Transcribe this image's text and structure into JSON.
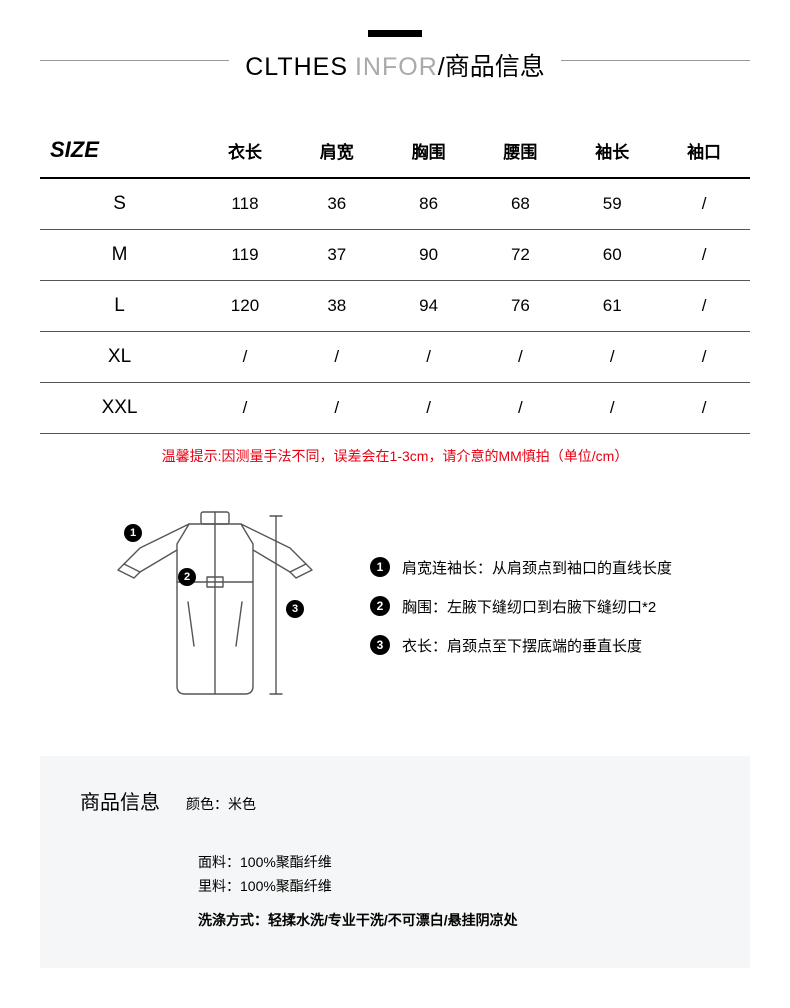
{
  "title": {
    "en1": "CLTHES",
    "en2": "INFOR",
    "sep": "/",
    "cn": "商品信息"
  },
  "table": {
    "size_header": "SIZE",
    "columns": [
      "衣长",
      "肩宽",
      "胸围",
      "腰围",
      "袖长",
      "袖口"
    ],
    "rows": [
      {
        "size": "S",
        "v": [
          "118",
          "36",
          "86",
          "68",
          "59",
          "/"
        ]
      },
      {
        "size": "M",
        "v": [
          "119",
          "37",
          "90",
          "72",
          "60",
          "/"
        ]
      },
      {
        "size": "L",
        "v": [
          "120",
          "38",
          "94",
          "76",
          "61",
          "/"
        ]
      },
      {
        "size": "XL",
        "v": [
          "/",
          "/",
          "/",
          "/",
          "/",
          "/"
        ]
      },
      {
        "size": "XXL",
        "v": [
          "/",
          "/",
          "/",
          "/",
          "/",
          "/"
        ]
      }
    ],
    "note": "温馨提示:因测量手法不同，误差会在1-3cm，请介意的MM慎拍（单位/cm）"
  },
  "diagram": {
    "markers": {
      "m1": "1",
      "m2": "2",
      "m3": "3"
    },
    "stroke": "#555",
    "stroke_width": 1.4
  },
  "legend": [
    {
      "n": "1",
      "label": "肩宽连袖长：从肩颈点到袖口的直线长度"
    },
    {
      "n": "2",
      "label": "胸围：左腋下缝纫口到右腋下缝纫口*2"
    },
    {
      "n": "3",
      "label": "衣长：肩颈点至下摆底端的垂直长度"
    }
  ],
  "info": {
    "title": "商品信息",
    "color_label": "颜色：",
    "color_val": "米色",
    "fabric_label": "面料：",
    "fabric_val": "100%聚酯纤维",
    "lining_label": "里料：",
    "lining_val": "100%聚酯纤维",
    "wash_label": "洗涤方式：",
    "wash_val": "轻揉水洗/专业干洗/不可漂白/悬挂阴凉处"
  },
  "colors": {
    "accent": "#e60012",
    "panel_bg": "#f5f6f7",
    "border": "#555"
  }
}
